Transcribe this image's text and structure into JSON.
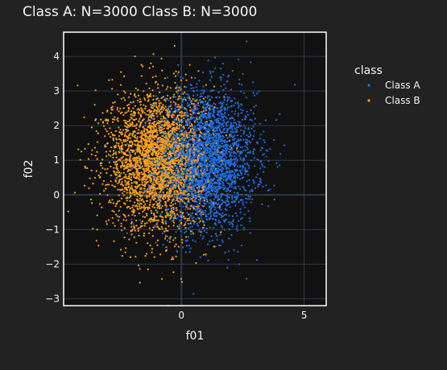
{
  "title": "Class A: N=3000   Class B: N=3000",
  "chart_data": {
    "type": "scatter",
    "xlabel": "f01",
    "ylabel": "f02",
    "xlim": [
      -4.8,
      5.9
    ],
    "ylim": [
      -3.2,
      4.7
    ],
    "x_ticks": [
      0,
      5
    ],
    "y_ticks": [
      -3,
      -2,
      -1,
      0,
      1,
      2,
      3,
      4
    ],
    "x_tick_labels": [
      "0",
      "5"
    ],
    "y_tick_labels": [
      "−3",
      "−2",
      "−1",
      "0",
      "1",
      "2",
      "3",
      "4"
    ],
    "grid": true,
    "legend": {
      "title": "class",
      "position": "right"
    },
    "series": [
      {
        "name": "Class A",
        "color": "#1f6fe0",
        "n": 3000,
        "center": [
          1.0,
          1.0
        ],
        "spread": [
          1.0,
          1.0
        ]
      },
      {
        "name": "Class B",
        "color": "#ffa31a",
        "n": 3000,
        "center": [
          -1.0,
          1.0
        ],
        "spread": [
          1.0,
          1.0
        ]
      }
    ],
    "colors": {
      "plot_bg": "#111111",
      "page_bg": "#222222",
      "grid": "#2e3a48",
      "frame": "#ffffff"
    }
  }
}
